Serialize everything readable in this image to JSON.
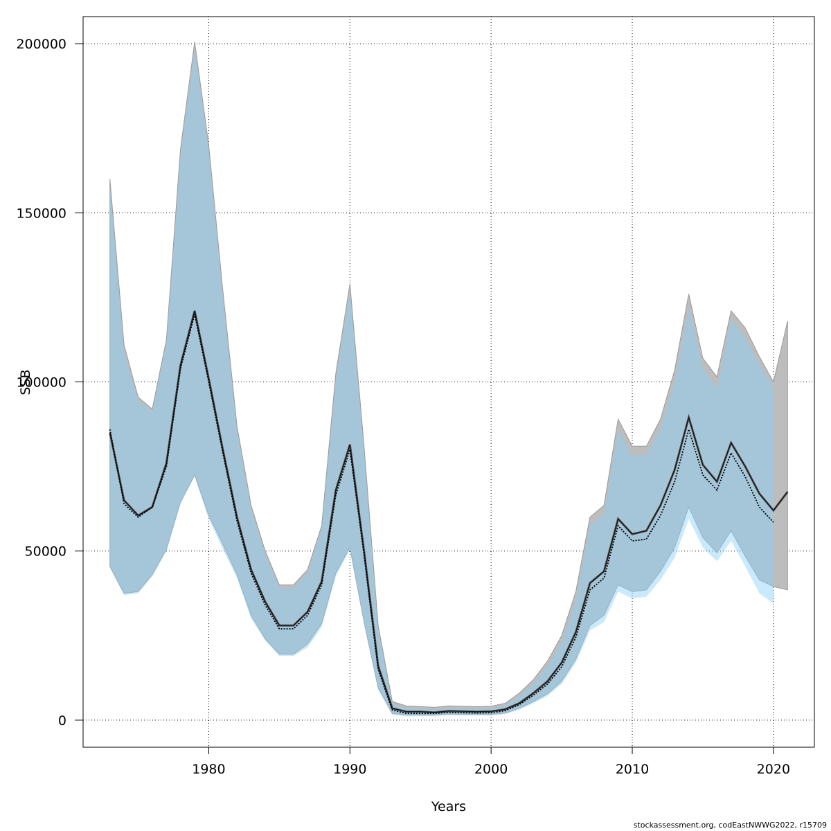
{
  "chart_data": {
    "type": "area",
    "xlabel": "Years",
    "ylabel": "SSB",
    "xlim": [
      1971.1,
      2022.9
    ],
    "ylim": [
      -8000,
      208000
    ],
    "xticks": [
      1980,
      1990,
      2000,
      2010,
      2020
    ],
    "yticks": [
      0,
      50000,
      100000,
      150000,
      200000
    ],
    "grid": true,
    "series": [
      {
        "years": [
          1973,
          1974,
          1975,
          1976,
          1977,
          1978,
          1979,
          1980,
          1981,
          1982,
          1983,
          1984,
          1985,
          1986,
          1987,
          1988,
          1989,
          1990,
          1991,
          1992,
          1993,
          1994,
          1995,
          1996,
          1997,
          1998,
          1999,
          2000,
          2001,
          2002,
          2003,
          2004,
          2005,
          2006,
          2007,
          2008,
          2009,
          2010,
          2011,
          2012,
          2013,
          2014,
          2015,
          2016,
          2017,
          2018,
          2019,
          2020,
          2021
        ],
        "estimate": [
          85000,
          65000,
          60500,
          63000,
          76000,
          105000,
          121000,
          101000,
          80000,
          60000,
          44500,
          35000,
          28000,
          28000,
          32000,
          41000,
          68000,
          81500,
          50000,
          16000,
          3500,
          2500,
          2500,
          2300,
          2700,
          2600,
          2500,
          2600,
          3200,
          5000,
          8000,
          11500,
          17000,
          26000,
          40500,
          44000,
          59500,
          55000,
          56000,
          63500,
          74000,
          89500,
          75500,
          70500,
          82000,
          75000,
          67000,
          62000,
          67500
        ],
        "low": [
          45500,
          37500,
          38000,
          43000,
          50500,
          64500,
          72500,
          60500,
          52000,
          43000,
          31000,
          24000,
          19500,
          19500,
          22500,
          28500,
          43500,
          51000,
          29000,
          9500,
          2000,
          1500,
          1500,
          1500,
          1800,
          1700,
          1700,
          1700,
          2100,
          3500,
          5500,
          7800,
          11500,
          18000,
          28000,
          31000,
          40000,
          38000,
          38500,
          44000,
          51000,
          63000,
          54000,
          49500,
          56000,
          48500,
          41500,
          39500,
          38500
        ],
        "high": [
          160000,
          111000,
          95500,
          92000,
          112500,
          169000,
          200500,
          170000,
          127000,
          87000,
          63500,
          50000,
          40000,
          40000,
          44500,
          57500,
          102500,
          129000,
          81000,
          28000,
          5500,
          4200,
          4000,
          3800,
          4200,
          4100,
          4000,
          4100,
          5000,
          8000,
          12000,
          17500,
          25000,
          38000,
          60000,
          63500,
          89000,
          81000,
          81000,
          89000,
          103500,
          126000,
          107000,
          101500,
          121000,
          116000,
          107500,
          100000,
          118000
        ],
        "low_alt": [
          45000,
          37000,
          37500,
          42500,
          50000,
          64000,
          72000,
          59500,
          50500,
          42000,
          30000,
          23500,
          19000,
          19000,
          21500,
          27500,
          42500,
          50500,
          28500,
          9000,
          1600,
          1200,
          1200,
          1200,
          1500,
          1400,
          1400,
          1400,
          1800,
          3100,
          5000,
          7200,
          10700,
          17000,
          26500,
          29000,
          38000,
          36000,
          36500,
          41500,
          48000,
          59500,
          51000,
          47000,
          53000,
          45500,
          37500,
          34500
        ],
        "estimate_alt": [
          86000,
          64000,
          60000,
          63000,
          75000,
          104000,
          120000,
          100000,
          79000,
          59000,
          43500,
          34000,
          27000,
          27000,
          31000,
          40000,
          66500,
          80000,
          49000,
          15000,
          3000,
          2000,
          2000,
          2000,
          2300,
          2200,
          2100,
          2200,
          2800,
          4600,
          7400,
          10700,
          15800,
          24500,
          38500,
          42000,
          57500,
          53000,
          53500,
          60500,
          70500,
          86000,
          72500,
          68000,
          79000,
          72000,
          63000,
          58500
        ],
        "high_alt": [
          158000,
          109000,
          94500,
          91500,
          111500,
          167000,
          198500,
          168500,
          125500,
          86000,
          62500,
          49000,
          39000,
          39000,
          43500,
          56500,
          100500,
          127000,
          79500,
          27000,
          4800,
          3500,
          3400,
          3200,
          3500,
          3500,
          3400,
          3500,
          4300,
          7000,
          10800,
          16000,
          23000,
          35500,
          57500,
          61000,
          86000,
          78000,
          78500,
          86500,
          100000,
          122000,
          104000,
          98000,
          118500,
          113000,
          105000,
          98500
        ]
      }
    ]
  },
  "footer": {
    "credit": "stockassessment.org, codEastNWWG2022, r15709"
  }
}
